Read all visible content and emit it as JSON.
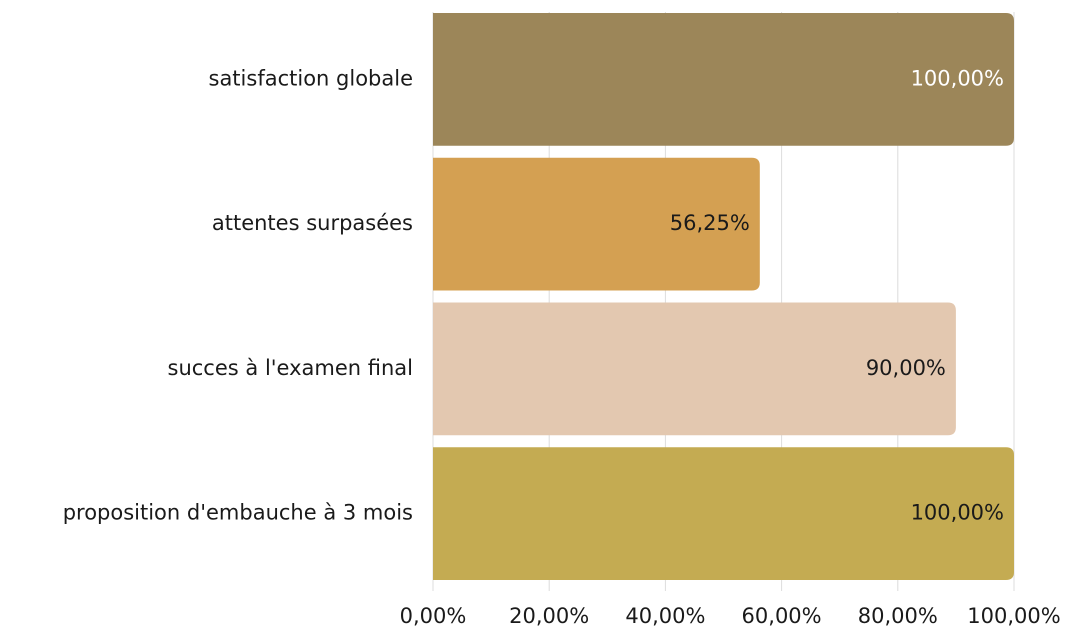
{
  "chart_data": {
    "type": "hbar",
    "categories": [
      "satisfaction globale",
      "attentes surpasées",
      "succes à l'examen final",
      "proposition d'embauche à 3 mois"
    ],
    "values": [
      100,
      56.25,
      90,
      100
    ],
    "value_labels": [
      "100,00%",
      "56,25%",
      "90,00%",
      "100,00%"
    ],
    "colors": [
      "#9c8659",
      "#d4a052",
      "#e3c8b0",
      "#c4ab52"
    ],
    "xlim": [
      0,
      100
    ],
    "xticks": [
      {
        "value": 0,
        "label": "0,00%"
      },
      {
        "value": 20,
        "label": "20,00%"
      },
      {
        "value": 40,
        "label": "40,00%"
      },
      {
        "value": 60,
        "label": "60,00%"
      },
      {
        "value": 80,
        "label": "80,00%"
      },
      {
        "value": 100,
        "label": "100,00%"
      }
    ],
    "grid": true
  }
}
